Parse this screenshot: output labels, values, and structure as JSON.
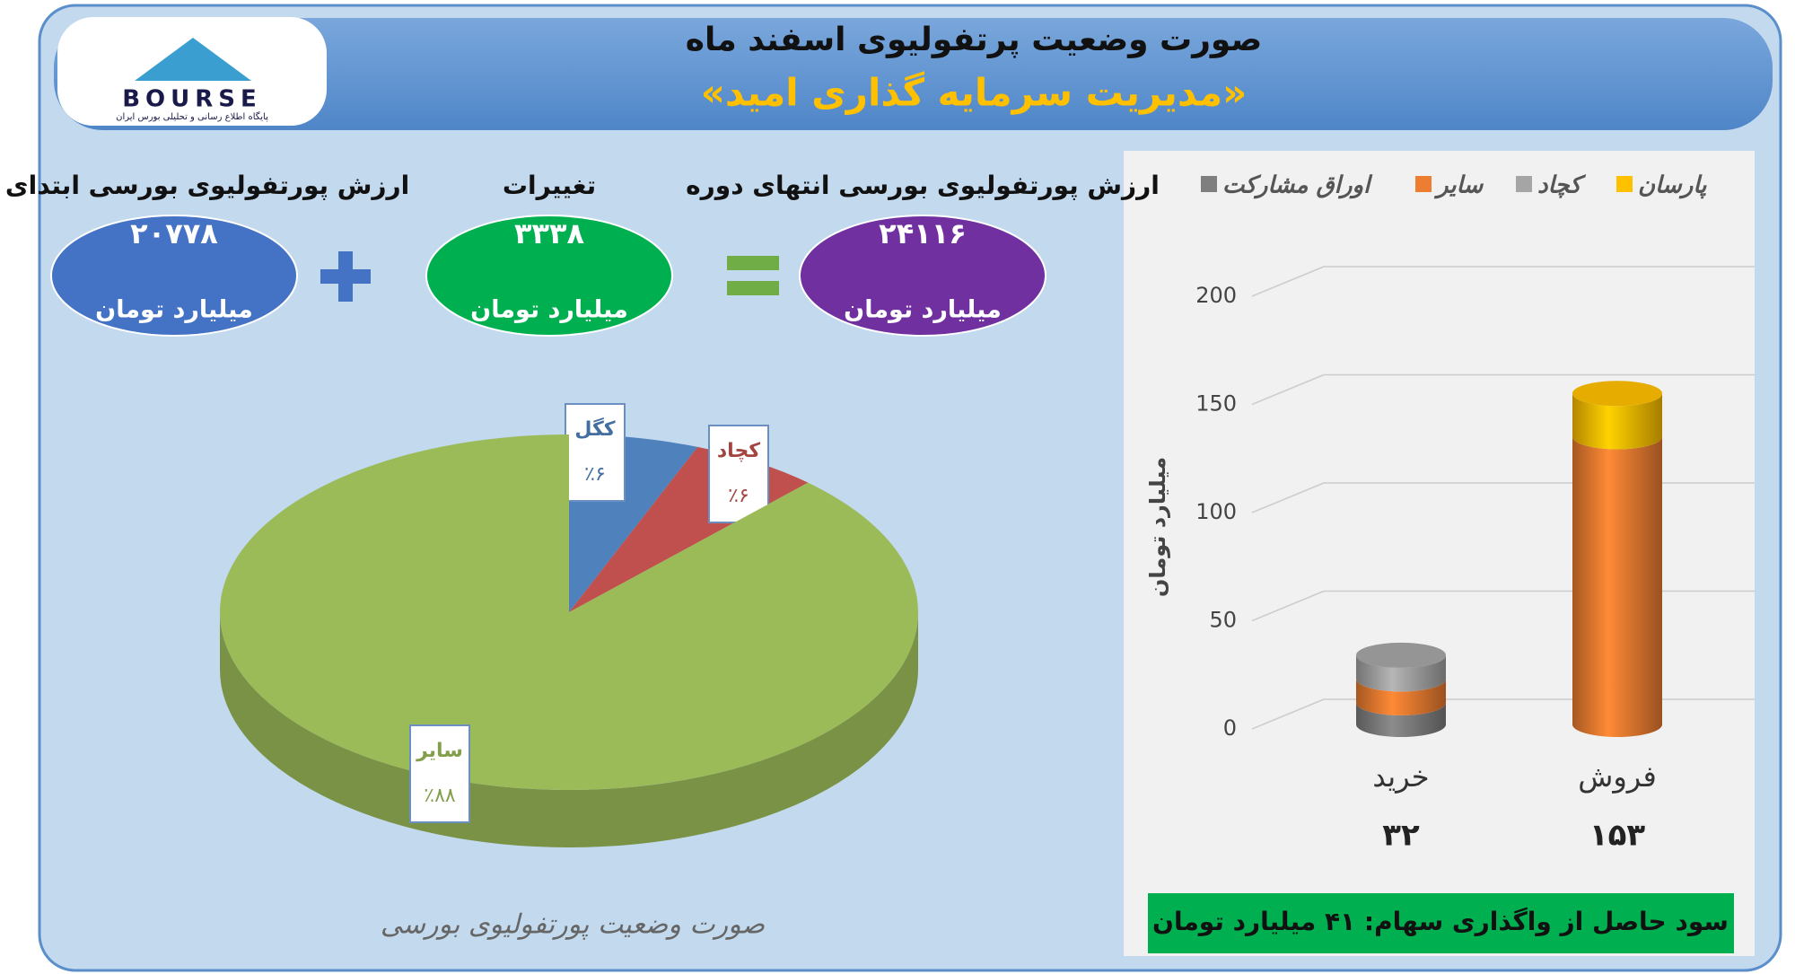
{
  "header": {
    "title": "صورت وضعیت پرتفولیوی اسفند ماه",
    "subtitle": "«مدیریت سرمایه گذاری امید»"
  },
  "logo": {
    "name": "BOURSE",
    "tagline": "پایگاه اطلاع رسانی و تحلیلی بورس ایران"
  },
  "summary": [
    {
      "label": "ارزش پورتفولیوی بورسی انتهای دوره",
      "value": "۲۴۱۱۶",
      "unit": "میلیارد تومان",
      "color": "#7030a0"
    },
    {
      "label": "تغییرات",
      "value": "۳۳۳۸",
      "unit": "میلیارد تومان",
      "color": "#00b050"
    },
    {
      "label": "ارزش پورتفولیوی بورسی ابتدای دوره",
      "value": "۲۰۷۷۸",
      "unit": "میلیارد تومان",
      "color": "#4472c4"
    }
  ],
  "chart_data": [
    {
      "type": "pie",
      "title": "صورت وضعیت پورتفولیوی بورسی",
      "categories": [
        "کگل",
        "کچاد",
        "سایر"
      ],
      "values": [
        6,
        6,
        88
      ],
      "value_labels": [
        "٪۶",
        "٪۶",
        "٪۸۸"
      ],
      "colors": [
        "#4f81bd",
        "#c0504d",
        "#9bbb59"
      ]
    },
    {
      "type": "bar",
      "stacked": true,
      "ylabel": "میلیارد تومان",
      "categories": [
        "خرید",
        "فروش"
      ],
      "series": [
        {
          "name": "پارسان",
          "color": "#ffc000",
          "values": [
            0,
            20
          ]
        },
        {
          "name": "کچاد",
          "color": "#a5a5a5",
          "values": [
            11,
            0
          ]
        },
        {
          "name": "سایر",
          "color": "#ed7d31",
          "values": [
            11,
            133
          ]
        },
        {
          "name": "اوراق مشارکت",
          "color": "#7f7f7f",
          "values": [
            10,
            0
          ]
        }
      ],
      "totals": [
        32,
        153
      ],
      "total_labels": [
        "۳۲",
        "۱۵۳"
      ],
      "ylim": [
        0,
        200
      ],
      "yticks": [
        0,
        50,
        100,
        150,
        200
      ],
      "grid": true
    }
  ],
  "footer": "سود حاصل از واگذاری سهام: ۴۱ میلیارد تومان"
}
